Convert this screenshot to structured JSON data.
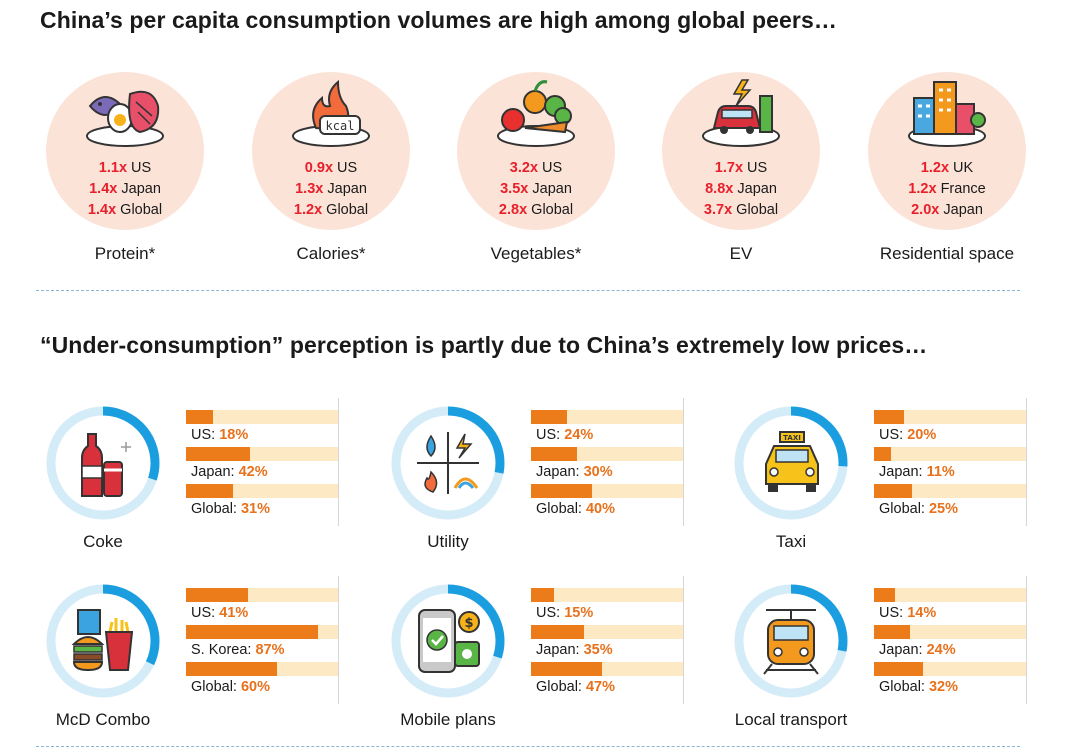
{
  "colors": {
    "accent_red": "#e8202a",
    "bar_fill": "#ec7c1a",
    "bar_track": "#fde9c4",
    "ring_track": "#d4ecf8",
    "ring_fill": "#1a9ee0",
    "peer_circle": "#fbe3d8"
  },
  "section1": {
    "title": "China’s per capita consumption volumes are high among global peers…",
    "items": [
      {
        "label": "Protein*",
        "icon": "protein-plate-icon",
        "lines": [
          {
            "mult": "1.1x",
            "peer": "US"
          },
          {
            "mult": "1.4x",
            "peer": "Japan"
          },
          {
            "mult": "1.4x",
            "peer": "Global"
          }
        ]
      },
      {
        "label": "Calories*",
        "icon": "kcal-flame-icon",
        "lines": [
          {
            "mult": "0.9x",
            "peer": "US"
          },
          {
            "mult": "1.3x",
            "peer": "Japan"
          },
          {
            "mult": "1.2x",
            "peer": "Global"
          }
        ]
      },
      {
        "label": "Vegetables*",
        "icon": "vegetables-plate-icon",
        "lines": [
          {
            "mult": "3.2x",
            "peer": "US"
          },
          {
            "mult": "3.5x",
            "peer": "Japan"
          },
          {
            "mult": "2.8x",
            "peer": "Global"
          }
        ]
      },
      {
        "label": "EV",
        "icon": "ev-charging-icon",
        "lines": [
          {
            "mult": "1.7x",
            "peer": "US"
          },
          {
            "mult": "8.8x",
            "peer": "Japan"
          },
          {
            "mult": "3.7x",
            "peer": "Global"
          }
        ]
      },
      {
        "label": "Residential space",
        "icon": "buildings-icon",
        "lines": [
          {
            "mult": "1.2x",
            "peer": "UK"
          },
          {
            "mult": "1.2x",
            "peer": "France"
          },
          {
            "mult": "2.0x",
            "peer": "Japan"
          }
        ]
      }
    ]
  },
  "section2": {
    "title": "“Under-consumption” perception is partly due to China’s extremely low prices…"
  },
  "chart_data": {
    "type": "bar",
    "unit": "%",
    "groups": [
      {
        "label": "Coke",
        "icon": "coke-bottle-icon",
        "bars": [
          {
            "name": "US",
            "value": 18
          },
          {
            "name": "Japan",
            "value": 42
          },
          {
            "name": "Global",
            "value": 31
          }
        ]
      },
      {
        "label": "Utility",
        "icon": "utility-icon",
        "bars": [
          {
            "name": "US",
            "value": 24
          },
          {
            "name": "Japan",
            "value": 30
          },
          {
            "name": "Global",
            "value": 40
          }
        ]
      },
      {
        "label": "Taxi",
        "icon": "taxi-icon",
        "bars": [
          {
            "name": "US",
            "value": 20
          },
          {
            "name": "Japan",
            "value": 11
          },
          {
            "name": "Global",
            "value": 25
          }
        ]
      },
      {
        "label": "McD Combo",
        "icon": "burger-combo-icon",
        "bars": [
          {
            "name": "US",
            "value": 41
          },
          {
            "name": "S. Korea",
            "value": 87
          },
          {
            "name": "Global",
            "value": 60
          }
        ]
      },
      {
        "label": "Mobile plans",
        "icon": "mobile-payment-icon",
        "bars": [
          {
            "name": "US",
            "value": 15
          },
          {
            "name": "Japan",
            "value": 35
          },
          {
            "name": "Global",
            "value": 47
          }
        ]
      },
      {
        "label": "Local transport",
        "icon": "train-icon",
        "bars": [
          {
            "name": "US",
            "value": 14
          },
          {
            "name": "Japan",
            "value": 24
          },
          {
            "name": "Global",
            "value": 32
          }
        ]
      }
    ],
    "ylim": [
      0,
      100
    ]
  }
}
